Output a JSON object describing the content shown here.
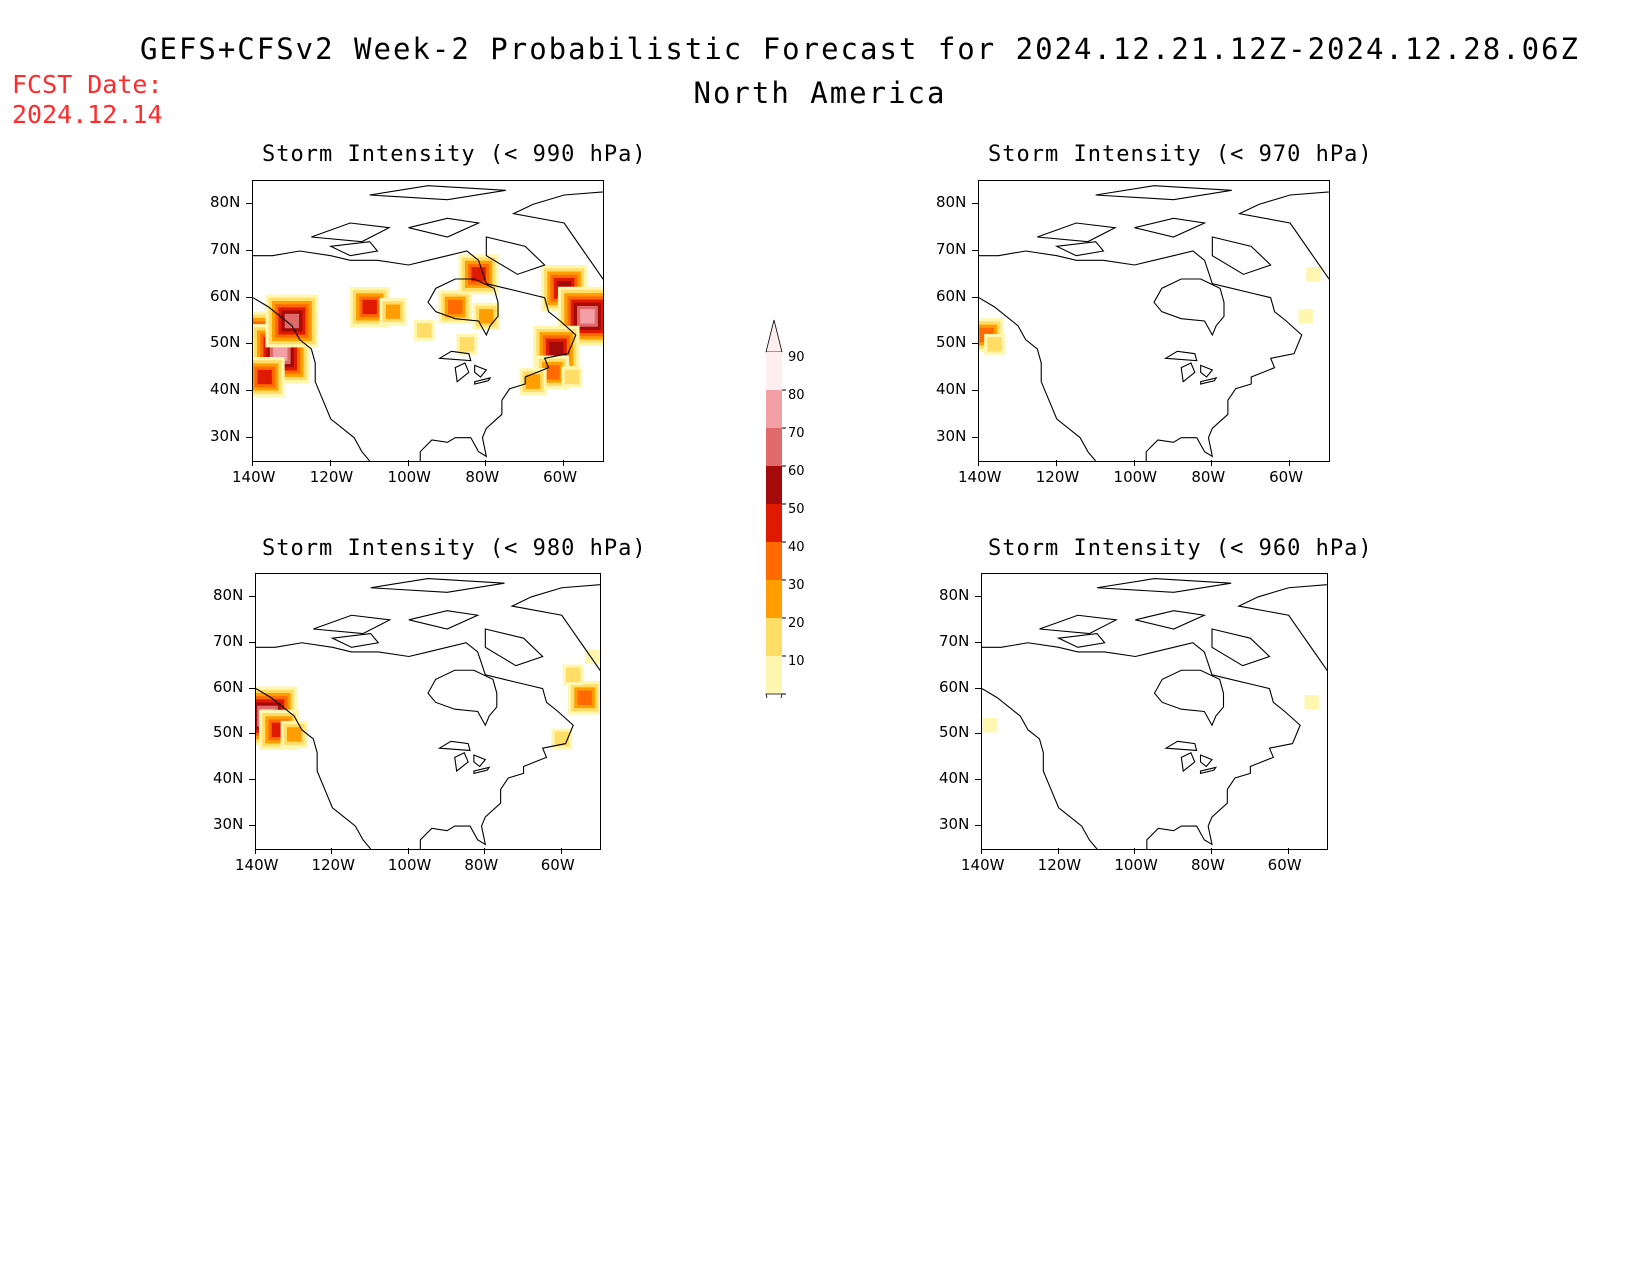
{
  "header": {
    "title_line1": "GEFS+CFSv2 Week-2 Probabilistic Forecast for 2024.12.21.12Z-2024.12.28.06Z",
    "title_line2": "North America",
    "fcst_label": "FCST Date:",
    "fcst_date": "2024.12.14"
  },
  "panels": [
    {
      "id": "p990",
      "title": "Storm Intensity (< 990 hPa)"
    },
    {
      "id": "p970",
      "title": "Storm Intensity (< 970 hPa)"
    },
    {
      "id": "p980",
      "title": "Storm Intensity (< 980 hPa)"
    },
    {
      "id": "p960",
      "title": "Storm Intensity (< 960 hPa)"
    }
  ],
  "axes": {
    "lat_labels": [
      "80N",
      "70N",
      "60N",
      "50N",
      "40N",
      "30N"
    ],
    "lon_labels": [
      "140W",
      "120W",
      "100W",
      "80W",
      "60W"
    ],
    "lat_values": [
      80,
      70,
      60,
      50,
      40,
      30
    ],
    "lon_values": [
      -140,
      -120,
      -100,
      -80,
      -60
    ],
    "lat_range": [
      25,
      85
    ],
    "lon_range": [
      -140,
      -50
    ]
  },
  "colorbar": {
    "labels": [
      "90",
      "80",
      "70",
      "60",
      "50",
      "40",
      "30",
      "20",
      "10"
    ],
    "colors": [
      "#ffeef0",
      "#f2a0a6",
      "#de6a6a",
      "#a50a0a",
      "#e01a00",
      "#ff6a00",
      "#ff9e00",
      "#ffdd66",
      "#fff6b0"
    ]
  },
  "map_data": {
    "p990": [
      {
        "lon": -138,
        "lat": 50,
        "level": 90
      },
      {
        "lon": -133,
        "lat": 48,
        "level": 80
      },
      {
        "lon": -130,
        "lat": 55,
        "level": 70
      },
      {
        "lon": -137,
        "lat": 43,
        "level": 50
      },
      {
        "lon": -110,
        "lat": 58,
        "level": 50
      },
      {
        "lon": -104,
        "lat": 57,
        "level": 30
      },
      {
        "lon": -96,
        "lat": 53,
        "level": 20
      },
      {
        "lon": -88,
        "lat": 58,
        "level": 40
      },
      {
        "lon": -80,
        "lat": 56,
        "level": 30
      },
      {
        "lon": -85,
        "lat": 50,
        "level": 20
      },
      {
        "lon": -82,
        "lat": 65,
        "level": 50
      },
      {
        "lon": -60,
        "lat": 62,
        "level": 60
      },
      {
        "lon": -54,
        "lat": 56,
        "level": 80
      },
      {
        "lon": -62,
        "lat": 49,
        "level": 60
      },
      {
        "lon": -63,
        "lat": 44,
        "level": 40
      },
      {
        "lon": -58,
        "lat": 43,
        "level": 20
      },
      {
        "lon": -68,
        "lat": 42,
        "level": 30
      }
    ],
    "p970": [
      {
        "lon": -138,
        "lat": 52,
        "level": 40
      },
      {
        "lon": -136,
        "lat": 50,
        "level": 20
      },
      {
        "lon": -56,
        "lat": 56,
        "level": 10
      },
      {
        "lon": -54,
        "lat": 65,
        "level": 10
      }
    ],
    "p980": [
      {
        "lon": -137,
        "lat": 54,
        "level": 80
      },
      {
        "lon": -134,
        "lat": 51,
        "level": 50
      },
      {
        "lon": -130,
        "lat": 50,
        "level": 30
      },
      {
        "lon": -54,
        "lat": 58,
        "level": 40
      },
      {
        "lon": -57,
        "lat": 63,
        "level": 20
      },
      {
        "lon": -60,
        "lat": 49,
        "level": 20
      },
      {
        "lon": -52,
        "lat": 67,
        "level": 10
      }
    ],
    "p960": [
      {
        "lon": -138,
        "lat": 52,
        "level": 10
      },
      {
        "lon": -54,
        "lat": 57,
        "level": 10
      }
    ]
  }
}
